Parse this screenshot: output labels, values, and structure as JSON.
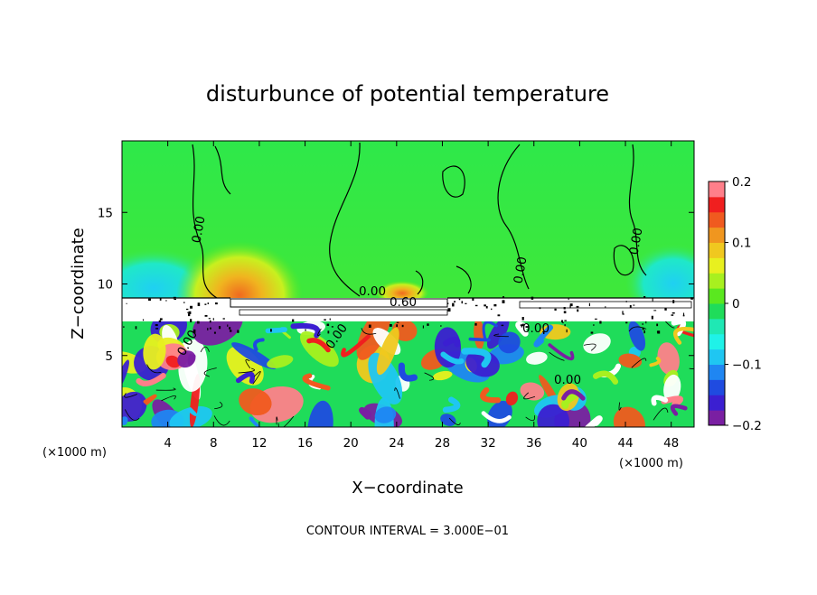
{
  "chart_data": {
    "type": "heatmap",
    "title": "disturbunce of potential temperature",
    "xlabel": "X−coordinate",
    "ylabel": "Z−coordinate",
    "x_unit_left": "(×1000 m)",
    "x_unit_right": "(×1000 m)",
    "xlim": [
      0,
      50
    ],
    "ylim": [
      0,
      20
    ],
    "x_ticks": [
      4,
      8,
      12,
      16,
      20,
      24,
      28,
      32,
      36,
      40,
      44,
      48
    ],
    "x_tick_labels": [
      "4",
      "8",
      "12",
      "16",
      "20",
      "24",
      "28",
      "32",
      "36",
      "40",
      "44",
      "48"
    ],
    "y_ticks": [
      5,
      10,
      15
    ],
    "y_tick_labels": [
      "5",
      "10",
      "15"
    ],
    "colorbar": {
      "range": [
        -0.2,
        0.2
      ],
      "ticks": [
        0.2,
        0.1,
        0,
        -0.1,
        -0.2
      ],
      "tick_labels": [
        "0.2",
        "0.1",
        "0",
        "−0.1",
        "−0.2"
      ],
      "colors": [
        "#7a1fa2",
        "#3b1fd1",
        "#1f4be0",
        "#1f86f2",
        "#1fc6f2",
        "#1ff2e8",
        "#1fe8b4",
        "#1fdc5a",
        "#5ae81f",
        "#a8f01f",
        "#e8f01f",
        "#f0c81f",
        "#f0961f",
        "#f05a1f",
        "#f01f1f",
        "#ff7f8a"
      ]
    },
    "contour_labels": [
      "0.00",
      "0.00",
      "0.00",
      "0.60",
      "0.00",
      "0.00",
      "0.00",
      "0.00",
      "0.00"
    ],
    "footer": "CONTOUR INTERVAL = 3.000E−01"
  }
}
